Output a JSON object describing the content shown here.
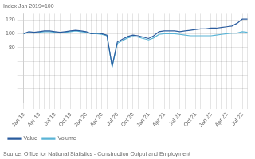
{
  "chart_data": {
    "type": "line",
    "y_label": "Index Jan 2019=100",
    "annotations": [
      "Source: Office for National Statistics - Construction Output and Employment"
    ],
    "categories": [
      "Jan 19",
      null,
      null,
      "Apr 19",
      null,
      null,
      "Jul 19",
      null,
      null,
      "Oct 19",
      null,
      null,
      "Jan 20",
      null,
      null,
      "Apr 20",
      null,
      null,
      "Jul 20",
      null,
      null,
      "Oct 20",
      null,
      null,
      "Jan 21",
      null,
      null,
      "Apr 21",
      null,
      null,
      "Jul 21",
      null,
      null,
      "Oct 21",
      null,
      null,
      "Jan 22",
      null,
      null,
      "Apr 22",
      null,
      null,
      "Jul 22",
      null
    ],
    "series": [
      {
        "name": "Value",
        "color": "#2b5c9e",
        "values": [
          100,
          103,
          102,
          103,
          104,
          104,
          103,
          102,
          103,
          104,
          105,
          104,
          103,
          100,
          101,
          100,
          98,
          53,
          88,
          92,
          96,
          98,
          97,
          95,
          93,
          97,
          103,
          104,
          104,
          104,
          103,
          104,
          105,
          106,
          107,
          107,
          108,
          108,
          109,
          110,
          111,
          115,
          121,
          121
        ]
      },
      {
        "name": "Volume",
        "color": "#5ab4d6",
        "values": [
          100,
          102,
          101,
          102,
          103,
          103,
          102,
          101,
          102,
          103,
          104,
          103,
          102,
          100,
          100,
          99,
          97,
          52,
          86,
          90,
          94,
          96,
          95,
          93,
          91,
          94,
          99,
          100,
          100,
          100,
          99,
          98,
          97,
          97,
          97,
          97,
          97,
          98,
          99,
          100,
          101,
          101,
          103,
          102
        ]
      }
    ],
    "ylim": [
      0,
      130
    ],
    "yticks": [
      {
        "value": 0,
        "label": ""
      },
      {
        "value": 20,
        "label": ""
      },
      {
        "value": 40,
        "label": ""
      },
      {
        "value": 60,
        "label": ""
      },
      80,
      100,
      120
    ],
    "grid": true,
    "legend": "lower left"
  }
}
